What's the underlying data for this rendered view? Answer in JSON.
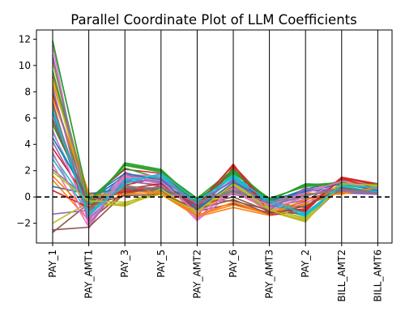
{
  "chart_data": {
    "type": "line",
    "title": "Parallel Coordinate Plot of LLM Coefficients",
    "xlabel": "",
    "ylabel": "",
    "categories": [
      "PAY_1",
      "PAY_AMT1",
      "PAY_3",
      "PAY_5",
      "PAY_AMT2",
      "PAY_6",
      "PAY_AMT3",
      "PAY_2",
      "BILL_AMT2",
      "BILL_AMT6"
    ],
    "ylim": [
      -3.5,
      12.7
    ],
    "yticks": [
      -2,
      0,
      2,
      4,
      6,
      8,
      10,
      12
    ],
    "reference_line": {
      "y": 0,
      "style": "dashed",
      "color": "#000000"
    },
    "grid": false,
    "legend": "none",
    "series": [
      {
        "color": "#1f77b4",
        "values": [
          11.8,
          -0.3,
          1.6,
          1.2,
          -0.2,
          1.5,
          -0.4,
          0.6,
          1.2,
          0.8
        ]
      },
      {
        "color": "#ff7f0e",
        "values": [
          1.3,
          -1.8,
          0.3,
          0.3,
          -1.4,
          -0.6,
          -1.3,
          -0.6,
          0.4,
          0.2
        ]
      },
      {
        "color": "#2ca02c",
        "values": [
          9.6,
          -0.6,
          2.5,
          2.0,
          -0.3,
          2.0,
          -0.2,
          0.9,
          1.0,
          0.7
        ]
      },
      {
        "color": "#d62728",
        "values": [
          7.8,
          -0.2,
          2.1,
          1.8,
          -0.5,
          2.4,
          -0.5,
          -0.8,
          1.5,
          1.0
        ]
      },
      {
        "color": "#9467bd",
        "values": [
          4.2,
          -0.9,
          1.5,
          1.0,
          -1.0,
          0.9,
          -0.8,
          -0.2,
          0.6,
          0.4
        ]
      },
      {
        "color": "#8c564b",
        "values": [
          -2.7,
          -0.5,
          1.2,
          0.9,
          -0.3,
          -0.3,
          -1.0,
          -1.8,
          0.8,
          0.3
        ]
      },
      {
        "color": "#e377c2",
        "values": [
          11.5,
          -2.4,
          1.9,
          0.9,
          -1.6,
          0.6,
          -0.7,
          0.4,
          1.3,
          0.9
        ]
      },
      {
        "color": "#7f7f7f",
        "values": [
          2.1,
          -0.2,
          0.8,
          0.6,
          -0.6,
          0.3,
          -0.3,
          0.2,
          0.5,
          0.2
        ]
      },
      {
        "color": "#bcbd22",
        "values": [
          10.2,
          -0.4,
          -0.7,
          0.5,
          -1.3,
          0.8,
          -1.1,
          -1.9,
          1.1,
          0.6
        ]
      },
      {
        "color": "#17becf",
        "values": [
          3.2,
          -0.8,
          1.4,
          1.6,
          -0.8,
          1.4,
          -0.6,
          -1.5,
          0.7,
          0.5
        ]
      },
      {
        "color": "#1f77b4",
        "values": [
          6.4,
          -1.5,
          1.7,
          1.1,
          -1.0,
          1.0,
          -0.4,
          -0.8,
          0.9,
          0.6
        ]
      },
      {
        "color": "#ff7f0e",
        "values": [
          8.6,
          0.3,
          0.4,
          0.5,
          -1.3,
          0.7,
          -1.2,
          -0.5,
          1.0,
          0.8
        ]
      },
      {
        "color": "#2ca02c",
        "values": [
          5.5,
          -0.2,
          2.2,
          1.4,
          -0.2,
          1.8,
          -0.1,
          0.8,
          1.0,
          0.9
        ]
      },
      {
        "color": "#d62728",
        "values": [
          9.2,
          -1.0,
          0.9,
          1.5,
          -1.5,
          2.3,
          -1.4,
          -1.0,
          1.4,
          1.0
        ]
      },
      {
        "color": "#9467bd",
        "values": [
          -1.3,
          -1.0,
          1.8,
          1.3,
          -0.4,
          1.2,
          -0.9,
          0.7,
          0.3,
          0.2
        ]
      },
      {
        "color": "#8c564b",
        "values": [
          7.2,
          -1.9,
          0.5,
          0.4,
          -1.1,
          -0.5,
          -1.2,
          -0.3,
          1.3,
          0.3
        ]
      },
      {
        "color": "#e377c2",
        "values": [
          2.5,
          -2.3,
          1.5,
          1.0,
          -1.8,
          0.4,
          -1.0,
          -0.4,
          0.5,
          0.2
        ]
      },
      {
        "color": "#7f7f7f",
        "values": [
          6.0,
          -0.6,
          0.6,
          0.5,
          -0.3,
          0.2,
          -0.4,
          -0.1,
          0.3,
          0.4
        ]
      },
      {
        "color": "#bcbd22",
        "values": [
          -2.0,
          -0.4,
          -0.6,
          0.3,
          -1.3,
          0.9,
          -0.8,
          -1.7,
          0.8,
          0.7
        ]
      },
      {
        "color": "#17becf",
        "values": [
          4.9,
          -0.5,
          1.2,
          1.7,
          -0.7,
          1.6,
          -0.2,
          -1.2,
          0.9,
          0.6
        ]
      },
      {
        "color": "#1f77b4",
        "values": [
          0.8,
          0.2,
          0.7,
          0.5,
          -0.2,
          0.5,
          -0.3,
          0.5,
          0.4,
          0.3
        ]
      },
      {
        "color": "#ff7f0e",
        "values": [
          1.6,
          -1.2,
          0.9,
          0.2,
          -1.5,
          -0.8,
          -1.4,
          0.3,
          0.2,
          0.8
        ]
      },
      {
        "color": "#2ca02c",
        "values": [
          8.1,
          -0.9,
          2.6,
          2.1,
          -0.4,
          1.9,
          -0.3,
          1.0,
          0.9,
          1.0
        ]
      },
      {
        "color": "#d62728",
        "values": [
          3.7,
          -0.3,
          0.4,
          0.8,
          -0.9,
          2.2,
          -0.6,
          -1.1,
          1.5,
          0.9
        ]
      },
      {
        "color": "#9467bd",
        "values": [
          10.8,
          -2.1,
          1.3,
          0.8,
          -0.5,
          1.3,
          -0.7,
          0.1,
          0.7,
          0.3
        ]
      },
      {
        "color": "#8c564b",
        "values": [
          -2.5,
          -2.3,
          0.3,
          0.7,
          -0.6,
          0.0,
          -1.1,
          -1.3,
          0.6,
          0.2
        ]
      },
      {
        "color": "#e377c2",
        "values": [
          5.1,
          -1.6,
          1.7,
          1.6,
          -1.7,
          0.7,
          -0.9,
          0.0,
          1.1,
          0.5
        ]
      },
      {
        "color": "#7f7f7f",
        "values": [
          6.9,
          -1.1,
          0.9,
          0.4,
          -0.2,
          0.5,
          -0.1,
          0.2,
          0.4,
          0.3
        ]
      },
      {
        "color": "#bcbd22",
        "values": [
          9.0,
          -0.7,
          -0.5,
          0.6,
          -1.2,
          1.1,
          -0.9,
          -1.6,
          1.2,
          0.8
        ]
      },
      {
        "color": "#17becf",
        "values": [
          2.9,
          -1.3,
          1.3,
          1.5,
          -0.5,
          1.7,
          -0.5,
          -1.4,
          0.8,
          0.4
        ]
      },
      {
        "color": "#1f77b4",
        "values": [
          4.5,
          -0.1,
          1.8,
          1.3,
          -0.9,
          1.1,
          -0.2,
          0.4,
          1.0,
          0.5
        ]
      },
      {
        "color": "#ff7f0e",
        "values": [
          7.5,
          0.1,
          0.2,
          0.4,
          -1.4,
          -0.4,
          -1.3,
          -0.2,
          0.3,
          0.7
        ]
      },
      {
        "color": "#2ca02c",
        "values": [
          11.9,
          -0.4,
          2.4,
          1.9,
          -0.1,
          2.1,
          -0.2,
          0.9,
          1.1,
          0.9
        ]
      },
      {
        "color": "#d62728",
        "values": [
          0.5,
          -0.8,
          0.6,
          1.0,
          -0.7,
          2.5,
          -1.2,
          -0.9,
          1.4,
          0.6
        ]
      },
      {
        "color": "#9467bd",
        "values": [
          8.3,
          -1.7,
          1.1,
          1.4,
          -0.6,
          0.8,
          -1.0,
          0.6,
          0.5,
          0.2
        ]
      },
      {
        "color": "#8c564b",
        "values": [
          5.8,
          -0.6,
          0.1,
          0.2,
          -0.9,
          -0.2,
          -1.3,
          -0.7,
          0.7,
          0.3
        ]
      },
      {
        "color": "#e377c2",
        "values": [
          3.4,
          -2.0,
          1.6,
          1.2,
          -1.2,
          0.3,
          -0.6,
          0.3,
          1.2,
          0.6
        ]
      },
      {
        "color": "#7f7f7f",
        "values": [
          10.5,
          -0.9,
          0.7,
          0.7,
          -0.4,
          0.4,
          -0.4,
          0.1,
          0.6,
          0.3
        ]
      },
      {
        "color": "#bcbd22",
        "values": [
          1.9,
          -0.3,
          -0.4,
          0.2,
          -1.1,
          1.0,
          -1.0,
          -1.8,
          1.0,
          0.9
        ]
      },
      {
        "color": "#17becf",
        "values": [
          6.6,
          -1.4,
          1.0,
          1.8,
          -0.3,
          1.5,
          -0.3,
          -1.3,
          0.9,
          0.7
        ]
      }
    ]
  }
}
